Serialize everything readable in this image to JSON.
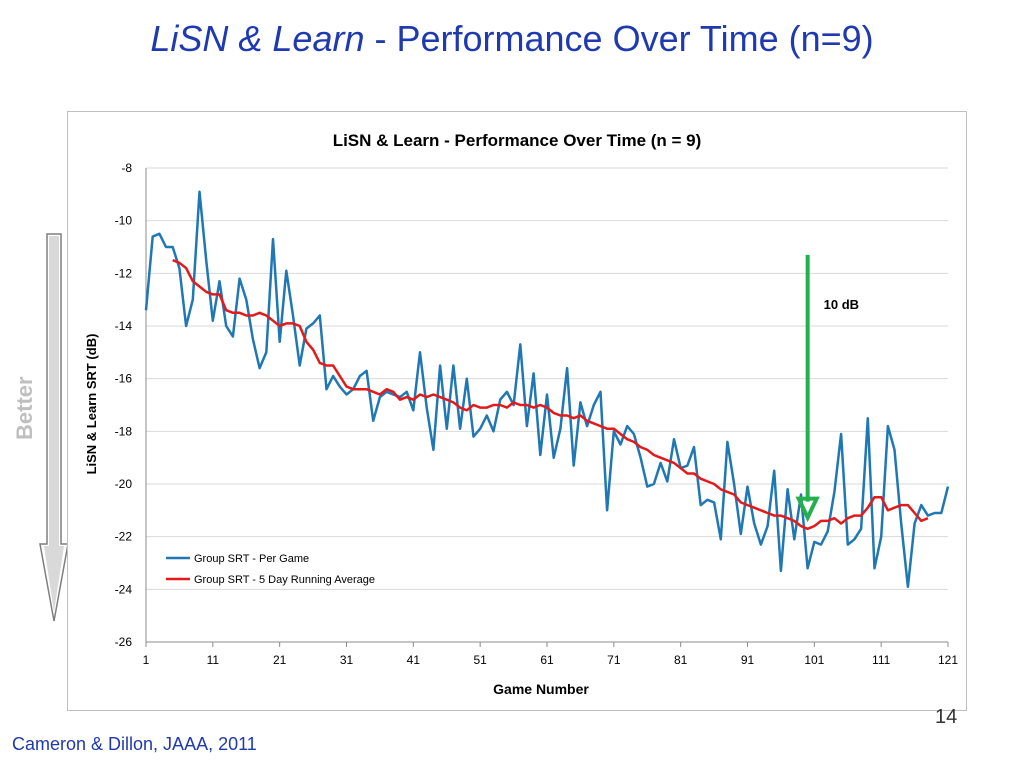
{
  "slide": {
    "title_italic": "LiSN & Learn",
    "title_rest": " - Performance Over Time (n=9)",
    "better_label": "Better",
    "page_number": "14",
    "citation": "Cameron & Dillon, JAAA, 2011"
  },
  "colors": {
    "title_blue": "#1f3ab0",
    "series_per_game": "#1f77b4",
    "series_running_avg": "#e31a1c",
    "annotation_arrow": "#22b14c",
    "better_arrow": "#bfbfbf"
  },
  "chart_data": {
    "type": "line",
    "title": "LiSN & Learn - Performance Over  Time (n = 9)",
    "xlabel": "Game Number",
    "ylabel": "LiSN & Learn SRT (dB)",
    "xlim": [
      1,
      121
    ],
    "ylim": [
      -26,
      -8
    ],
    "x_ticks": [
      1,
      11,
      21,
      31,
      41,
      51,
      61,
      71,
      81,
      91,
      101,
      111,
      121
    ],
    "y_ticks": [
      -8,
      -10,
      -12,
      -14,
      -16,
      -18,
      -20,
      -22,
      -24,
      -26
    ],
    "grid": "horizontal",
    "legend_position": "bottom-left",
    "annotation": {
      "text": "10 dB",
      "x": 100,
      "y_from": -11.3,
      "y_to": -21.2
    },
    "series": [
      {
        "name": "Group SRT - Per Game",
        "x_start": 1,
        "values": [
          -13.4,
          -10.6,
          -10.5,
          -11,
          -11,
          -11.8,
          -14,
          -13,
          -8.9,
          -11.5,
          -13.8,
          -12.3,
          -14,
          -14.4,
          -12.2,
          -13,
          -14.5,
          -15.6,
          -15,
          -10.7,
          -14.6,
          -11.9,
          -13.6,
          -15.5,
          -14.1,
          -13.9,
          -13.6,
          -16.4,
          -15.9,
          -16.3,
          -16.6,
          -16.4,
          -15.9,
          -15.7,
          -17.6,
          -16.7,
          -16.5,
          -16.6,
          -16.7,
          -16.5,
          -17.2,
          -15,
          -17.1,
          -18.7,
          -15.5,
          -17.9,
          -15.5,
          -17.9,
          -16,
          -18.2,
          -17.9,
          -17.4,
          -18,
          -16.8,
          -16.5,
          -17,
          -14.7,
          -17.8,
          -15.8,
          -18.9,
          -16.6,
          -19,
          -17.9,
          -15.6,
          -19.3,
          -16.9,
          -17.8,
          -17,
          -16.5,
          -21,
          -18,
          -18.5,
          -17.8,
          -18.1,
          -19,
          -20.1,
          -20,
          -19.2,
          -19.9,
          -18.3,
          -19.4,
          -19.3,
          -18.6,
          -20.8,
          -20.6,
          -20.7,
          -22.1,
          -18.4,
          -20,
          -21.9,
          -20.1,
          -21.5,
          -22.3,
          -21.6,
          -19.5,
          -23.3,
          -20.2,
          -22.1,
          -20.4,
          -23.2,
          -22.2,
          -22.3,
          -21.8,
          -20.3,
          -18.1,
          -22.3,
          -22.1,
          -21.7,
          -17.5,
          -23.2,
          -22,
          -17.8,
          -18.7,
          -21.5,
          -23.9,
          -21.5,
          -20.8,
          -21.2,
          -21.1,
          -21.1,
          -20.1
        ]
      },
      {
        "name": "Group SRT - 5 Day Running Average",
        "x_start": 5,
        "values": [
          -11.5,
          -11.6,
          -11.8,
          -12.3,
          -12.5,
          -12.7,
          -12.8,
          -12.8,
          -13.4,
          -13.5,
          -13.5,
          -13.6,
          -13.6,
          -13.5,
          -13.6,
          -13.8,
          -14,
          -13.9,
          -13.9,
          -14,
          -14.6,
          -14.9,
          -15.4,
          -15.5,
          -15.5,
          -15.9,
          -16.3,
          -16.4,
          -16.4,
          -16.4,
          -16.5,
          -16.6,
          -16.4,
          -16.5,
          -16.8,
          -16.7,
          -16.8,
          -16.6,
          -16.7,
          -16.6,
          -16.7,
          -16.8,
          -16.9,
          -17.1,
          -17.2,
          -17,
          -17.1,
          -17.1,
          -17,
          -17,
          -17.1,
          -16.9,
          -17,
          -17,
          -17.1,
          -17,
          -17.1,
          -17.3,
          -17.4,
          -17.4,
          -17.5,
          -17.4,
          -17.6,
          -17.7,
          -17.8,
          -17.9,
          -17.9,
          -18.1,
          -18.3,
          -18.4,
          -18.6,
          -18.7,
          -18.9,
          -19,
          -19.1,
          -19.2,
          -19.4,
          -19.6,
          -19.6,
          -19.8,
          -19.9,
          -20,
          -20.2,
          -20.3,
          -20.4,
          -20.7,
          -20.8,
          -20.9,
          -21,
          -21.1,
          -21.2,
          -21.2,
          -21.3,
          -21.4,
          -21.6,
          -21.7,
          -21.6,
          -21.4,
          -21.4,
          -21.3,
          -21.5,
          -21.3,
          -21.2,
          -21.2,
          -20.9,
          -20.5,
          -20.5,
          -21,
          -20.9,
          -20.8,
          -20.8,
          -21.1,
          -21.4,
          -21.3
        ]
      }
    ]
  }
}
